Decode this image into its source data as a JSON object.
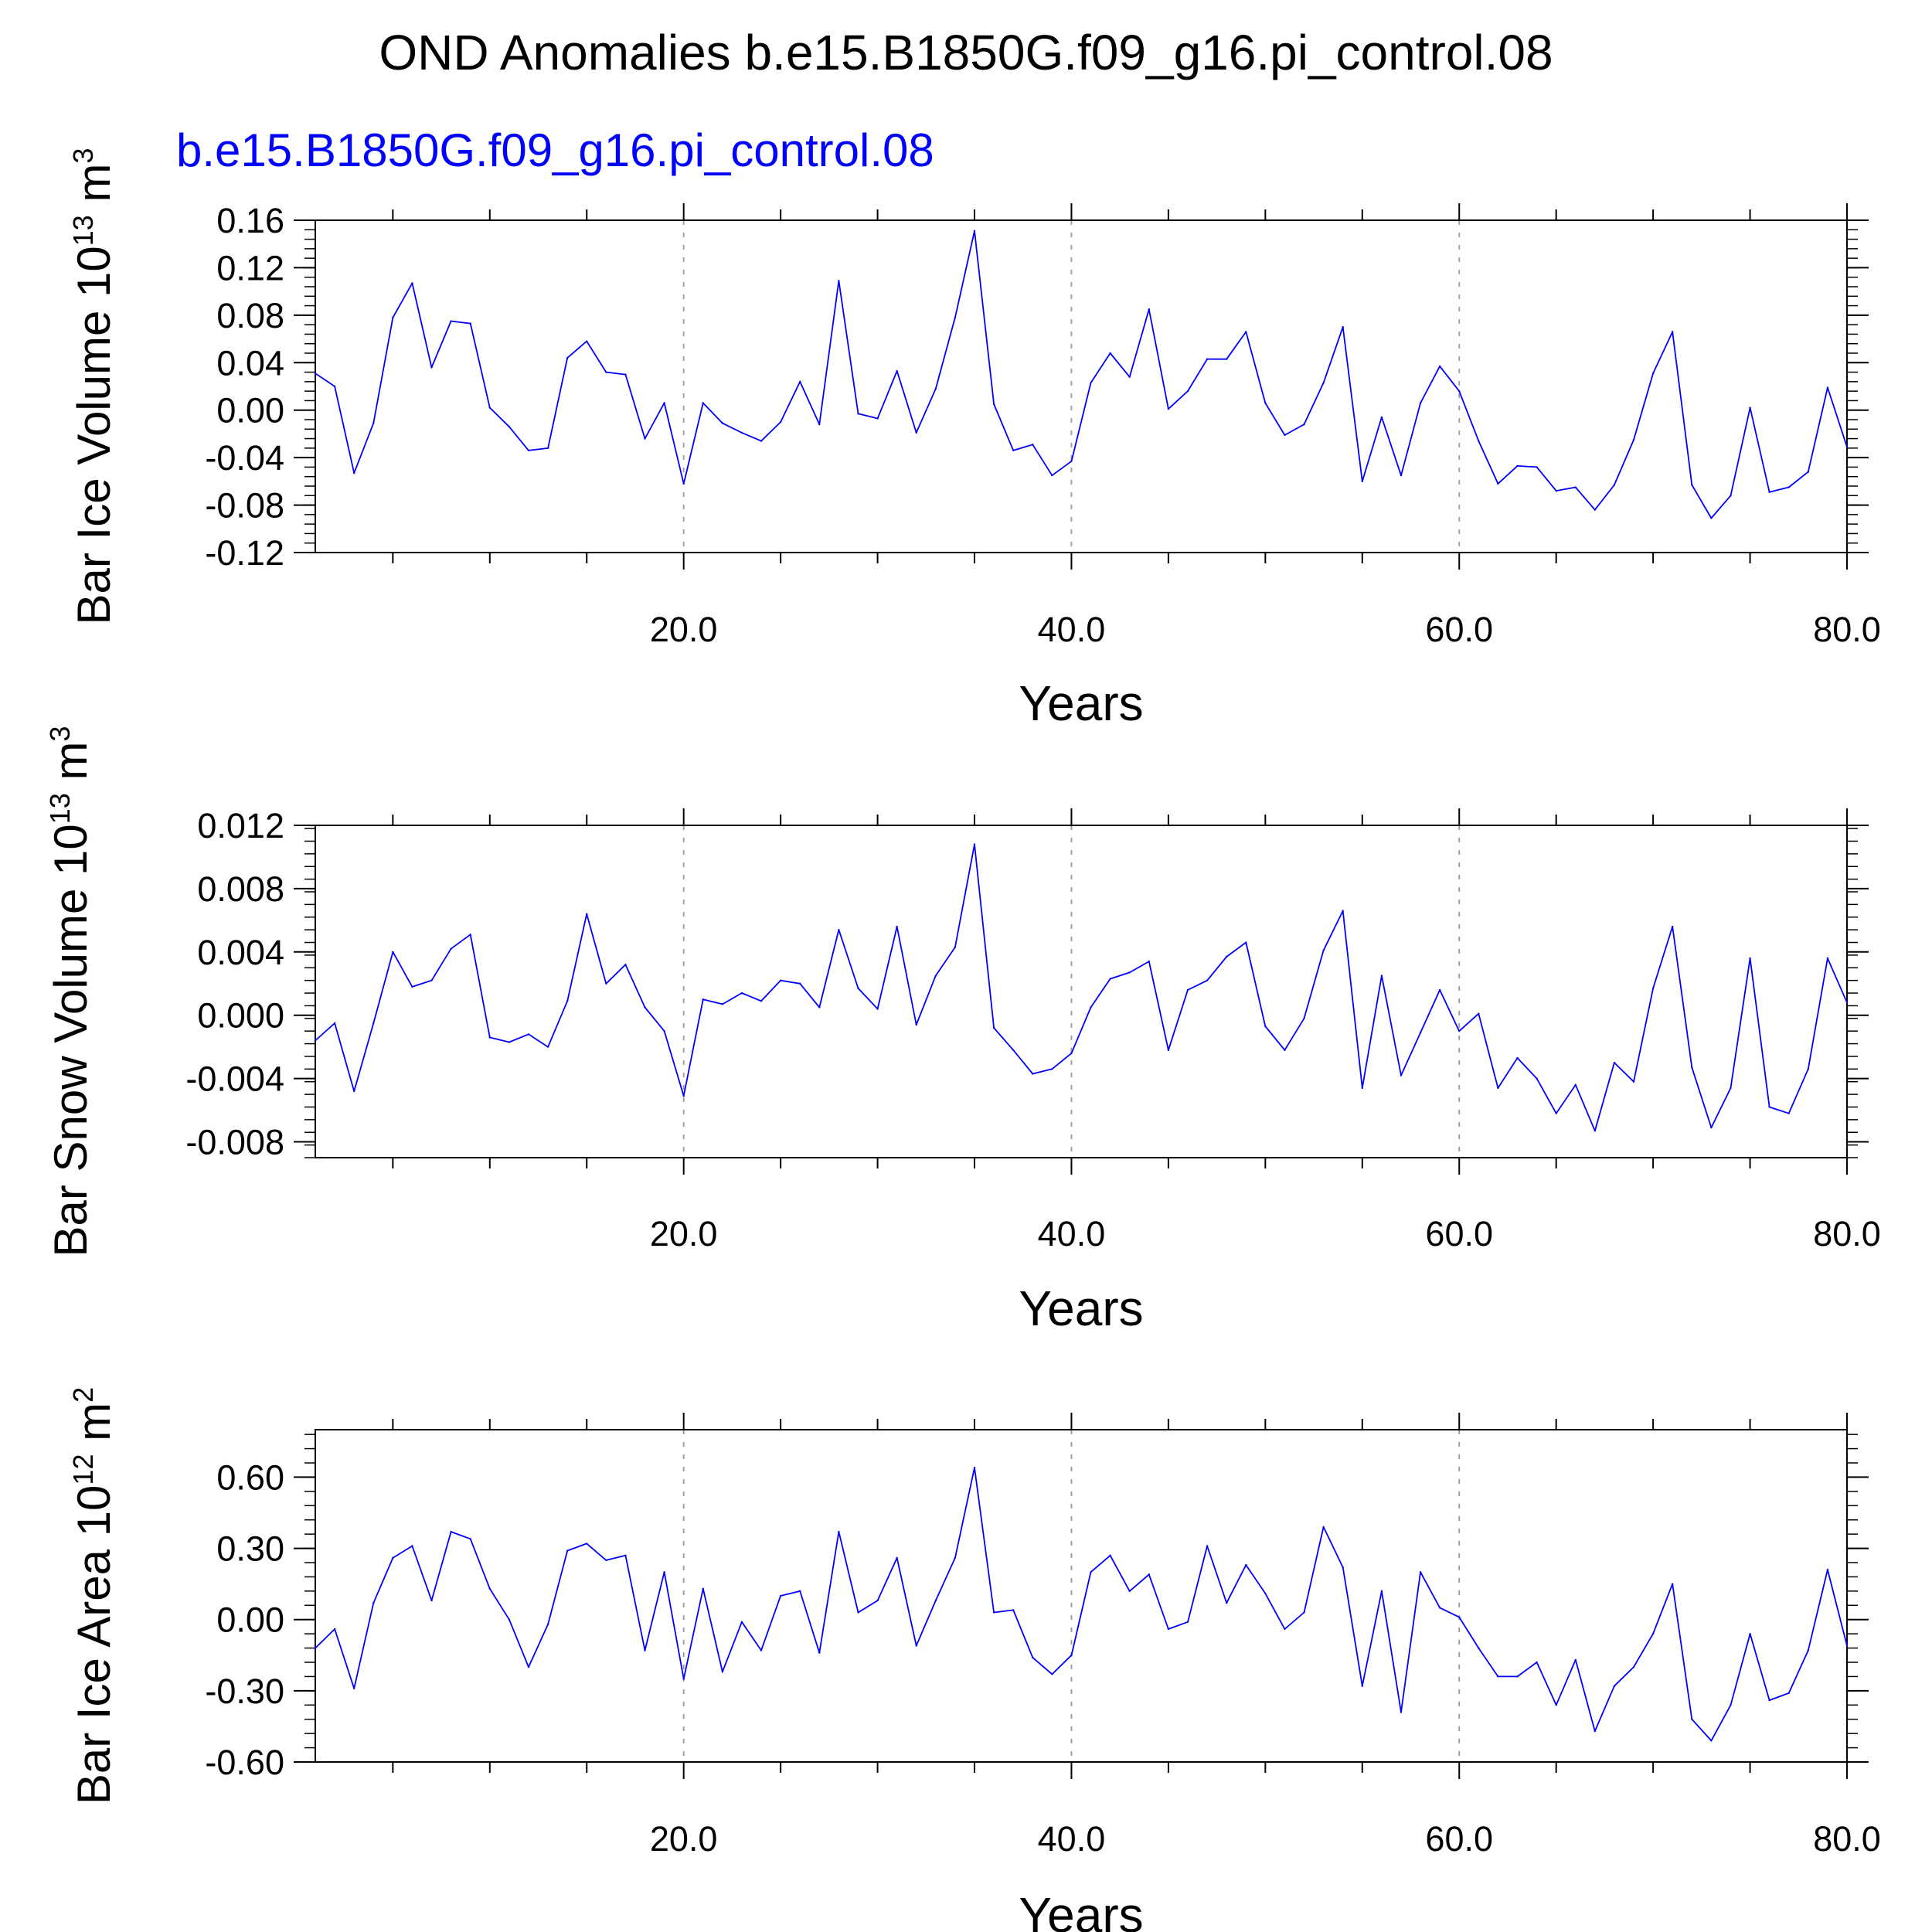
{
  "figure": {
    "title": "OND Anomalies b.e15.B1850G.f09_g16.pi_control.08",
    "subtitle": "b.e15.B1850G.f09_g16.pi_control.08",
    "subtitle_color": "#0000ff",
    "line_color": "#0000ff",
    "grid_color": "#999999"
  },
  "chart_data": [
    {
      "type": "line",
      "xlabel": "Years",
      "ylabel": "Bar Ice Volume 10",
      "ylabel_exponent": "13",
      "ylabel_unit": "m",
      "ylabel_unit_exponent": "3",
      "xlim": [
        1,
        80
      ],
      "ylim": [
        -0.12,
        0.16
      ],
      "xticks": [
        20,
        40,
        60,
        80
      ],
      "xtick_labels": [
        "20.0",
        "40.0",
        "60.0",
        "80.0"
      ],
      "yticks": [
        -0.12,
        -0.08,
        -0.04,
        0.0,
        0.04,
        0.08,
        0.12,
        0.16
      ],
      "ytick_labels": [
        "-0.12",
        "-0.08",
        "-0.04",
        "0.00",
        "0.04",
        "0.08",
        "0.12",
        "0.16"
      ],
      "grid": "dashed vertical lines at 20, 40, 60",
      "series": [
        {
          "values": [
            0.031,
            0.02,
            -0.053,
            -0.011,
            0.078,
            0.107,
            0.036,
            0.075,
            0.073,
            0.002,
            -0.014,
            -0.034,
            -0.032,
            0.044,
            0.058,
            0.032,
            0.03,
            -0.024,
            0.006,
            -0.062,
            0.006,
            -0.011,
            -0.019,
            -0.026,
            -0.01,
            0.024,
            -0.012,
            0.109,
            -0.003,
            -0.007,
            0.033,
            -0.019,
            0.018,
            0.078,
            0.151,
            0.005,
            -0.034,
            -0.029,
            -0.055,
            -0.043,
            0.023,
            0.048,
            0.028,
            0.085,
            0.001,
            0.016,
            0.043,
            0.043,
            0.066,
            0.006,
            -0.021,
            -0.012,
            0.023,
            0.07,
            -0.06,
            -0.006,
            -0.055,
            0.006,
            0.037,
            0.016,
            -0.026,
            -0.062,
            -0.047,
            -0.048,
            -0.068,
            -0.065,
            -0.084,
            -0.063,
            -0.025,
            0.031,
            0.066,
            -0.063,
            -0.091,
            -0.072,
            0.002,
            -0.069,
            -0.065,
            -0.052,
            0.019,
            -0.031
          ]
        }
      ]
    },
    {
      "type": "line",
      "xlabel": "Years",
      "ylabel": "Bar Snow Volume 10",
      "ylabel_exponent": "13",
      "ylabel_unit": "m",
      "ylabel_unit_exponent": "3",
      "xlim": [
        1,
        80
      ],
      "ylim": [
        -0.009,
        0.012
      ],
      "xticks": [
        20,
        40,
        60,
        80
      ],
      "xtick_labels": [
        "20.0",
        "40.0",
        "60.0",
        "80.0"
      ],
      "yticks": [
        -0.008,
        -0.004,
        0.0,
        0.004,
        0.008,
        0.012
      ],
      "ytick_labels": [
        "-0.008",
        "-0.004",
        "0.000",
        "0.004",
        "0.008",
        "0.012"
      ],
      "grid": "dashed vertical lines at 20, 40, 60",
      "series": [
        {
          "values": [
            -0.0016,
            -0.0005,
            -0.0048,
            -0.0005,
            0.004,
            0.0018,
            0.0022,
            0.0042,
            0.0051,
            -0.0014,
            -0.0017,
            -0.0012,
            -0.002,
            0.0009,
            0.0064,
            0.002,
            0.0032,
            0.0005,
            -0.001,
            -0.0051,
            0.001,
            0.0007,
            0.0014,
            0.0009,
            0.0022,
            0.002,
            0.0005,
            0.0054,
            0.0017,
            0.0004,
            0.0056,
            -0.0006,
            0.0025,
            0.0043,
            0.0108,
            -0.0008,
            -0.0022,
            -0.0037,
            -0.0034,
            -0.0024,
            0.0005,
            0.0023,
            0.0027,
            0.0034,
            -0.0022,
            0.0016,
            0.0022,
            0.0037,
            0.0046,
            -0.0007,
            -0.0022,
            -0.0002,
            0.0041,
            0.0066,
            -0.0046,
            0.0025,
            -0.0038,
            -0.0011,
            0.0016,
            -0.001,
            0.0001,
            -0.0046,
            -0.0027,
            -0.004,
            -0.0062,
            -0.0044,
            -0.0073,
            -0.003,
            -0.0042,
            0.0017,
            0.0056,
            -0.0033,
            -0.0071,
            -0.0046,
            0.0036,
            -0.0058,
            -0.0062,
            -0.0034,
            0.0036,
            0.0008
          ]
        }
      ]
    },
    {
      "type": "line",
      "xlabel": "Years",
      "ylabel": "Bar Ice Area 10",
      "ylabel_exponent": "12",
      "ylabel_unit": "m",
      "ylabel_unit_exponent": "2",
      "xlim": [
        1,
        80
      ],
      "ylim": [
        -0.6,
        0.8
      ],
      "xticks": [
        20,
        40,
        60,
        80
      ],
      "xtick_labels": [
        "20.0",
        "40.0",
        "60.0",
        "80.0"
      ],
      "yticks": [
        -0.6,
        -0.3,
        0.0,
        0.3,
        0.6
      ],
      "ytick_labels": [
        "-0.60",
        "-0.30",
        "0.00",
        "0.30",
        "0.60"
      ],
      "grid": "dashed vertical lines at 20, 40, 60",
      "series": [
        {
          "values": [
            -0.12,
            -0.04,
            -0.29,
            0.07,
            0.26,
            0.31,
            0.08,
            0.37,
            0.34,
            0.13,
            0.0,
            -0.2,
            -0.02,
            0.29,
            0.32,
            0.25,
            0.27,
            -0.13,
            0.2,
            -0.25,
            0.13,
            -0.22,
            -0.01,
            -0.13,
            0.1,
            0.12,
            -0.14,
            0.37,
            0.03,
            0.08,
            0.26,
            -0.11,
            0.08,
            0.26,
            0.64,
            0.03,
            0.04,
            -0.16,
            -0.23,
            -0.15,
            0.2,
            0.27,
            0.12,
            0.19,
            -0.04,
            -0.01,
            0.31,
            0.07,
            0.23,
            0.11,
            -0.04,
            0.03,
            0.39,
            0.22,
            -0.28,
            0.12,
            -0.39,
            0.2,
            0.05,
            0.01,
            -0.12,
            -0.24,
            -0.24,
            -0.18,
            -0.36,
            -0.17,
            -0.47,
            -0.28,
            -0.2,
            -0.06,
            0.15,
            -0.42,
            -0.51,
            -0.36,
            -0.06,
            -0.34,
            -0.31,
            -0.13,
            0.21,
            -0.11
          ]
        }
      ]
    }
  ]
}
